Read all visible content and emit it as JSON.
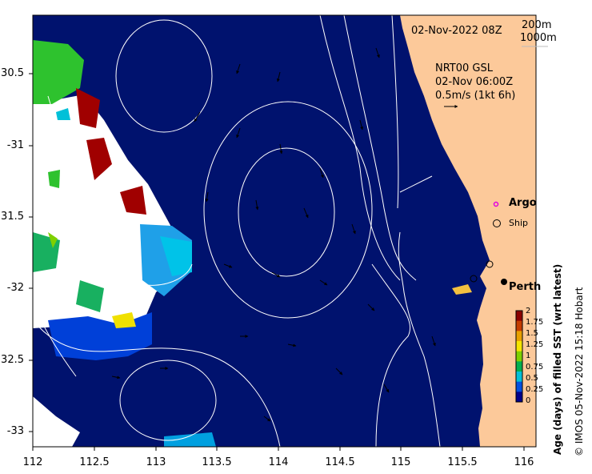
{
  "map": {
    "timestamp": "02-Nov-2022 08Z",
    "depth_contours": [
      "200m",
      "1000m"
    ],
    "current_product": "NRT00 GSL",
    "current_time": "02-Nov 06:00Z",
    "current_scale": "0.5m/s (1kt 6h)",
    "legend": {
      "argo": "Argo",
      "ship": "Ship"
    },
    "city": "Perth",
    "colorbar": {
      "label": "Age (days) of filled SST (wrt latest)",
      "ticks": [
        "2",
        "1.75",
        "1.5",
        "1.25",
        "1",
        "0.75",
        "0.5",
        "0.25",
        "0"
      ],
      "colors": [
        "#8b0000",
        "#c43c00",
        "#e8a000",
        "#f5e400",
        "#7fd000",
        "#00b050",
        "#00c0d8",
        "#0050e0",
        "#00008b"
      ]
    },
    "y_axis": [
      "30.5",
      "-31",
      "31.5",
      "-32",
      "32.5",
      "-33"
    ],
    "x_axis": [
      "112",
      "112.5",
      "113",
      "113.5",
      "114",
      "114.5",
      "115",
      "115.5",
      "116"
    ],
    "credit": "© IMOS 05-Nov-2022 15:18 Hobart",
    "colors": {
      "ocean": "#00126e",
      "land": "#fcc99a",
      "contour": "#ffffff"
    }
  }
}
